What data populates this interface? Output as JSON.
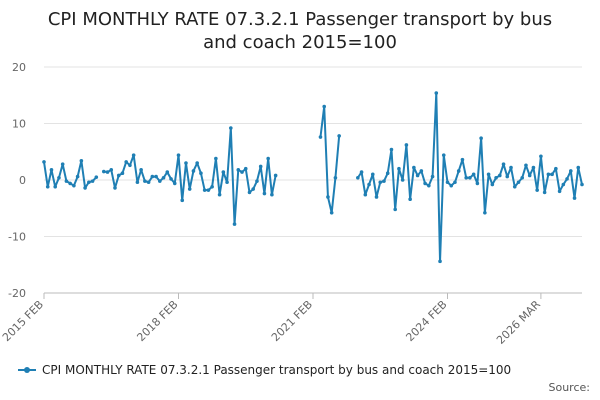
{
  "chart_data": {
    "type": "line",
    "title_lines": [
      "CPI MONTHLY RATE 07.3.2.1 Passenger transport by bus",
      "and coach 2015=100"
    ],
    "xlabel": "",
    "ylabel": "",
    "ylim": [
      -20,
      20
    ],
    "y_ticks": [
      20,
      10,
      0,
      -10,
      -20
    ],
    "x_ticks": [
      "2015 FEB",
      "2018 FEB",
      "2021 FEB",
      "2024 FEB",
      "2026 MAR"
    ],
    "x_start": "2015 FEB",
    "x_end": "2026 MAR",
    "grid": "horizontal",
    "legend_position": "bottom",
    "series": [
      {
        "name": "CPI MONTHLY RATE 07.3.2.1 Passenger transport by bus and coach 2015=100",
        "color": "#1f7fb4",
        "values": [
          3.2,
          -1.2,
          1.8,
          -1.2,
          0.4,
          2.8,
          -0.2,
          -0.6,
          -1.0,
          0.6,
          3.4,
          -1.4,
          -0.4,
          -0.2,
          0.5,
          null,
          1.5,
          1.4,
          1.8,
          -1.4,
          0.8,
          1.2,
          3.2,
          2.6,
          4.4,
          -0.4,
          1.8,
          -0.2,
          -0.4,
          0.6,
          0.6,
          -0.2,
          0.4,
          1.4,
          0.2,
          -0.6,
          4.4,
          -3.6,
          3.0,
          -1.6,
          1.6,
          3.0,
          1.2,
          -1.8,
          -1.8,
          -1.2,
          3.8,
          -2.6,
          1.4,
          -0.4,
          9.2,
          -7.8,
          1.8,
          1.4,
          2.0,
          -2.2,
          -1.6,
          -0.2,
          2.4,
          -2.4,
          3.8,
          -2.6,
          0.8,
          null,
          null,
          null,
          null,
          null,
          null,
          null,
          null,
          null,
          null,
          null,
          7.6,
          13.0,
          -3.0,
          -5.8,
          0.4,
          7.8,
          null,
          null,
          null,
          null,
          0.4,
          1.4,
          -2.6,
          -0.8,
          1.0,
          -3.0,
          -0.4,
          -0.2,
          1.2,
          5.4,
          -5.2,
          2.0,
          0.0,
          6.2,
          -3.4,
          2.2,
          0.8,
          1.6,
          -0.6,
          -1.0,
          0.6,
          15.4,
          -14.4,
          4.4,
          -0.4,
          -1.0,
          -0.4,
          1.6,
          3.6,
          0.4,
          0.4,
          1.0,
          -0.6,
          7.4,
          -5.8,
          1.0,
          -0.8,
          0.4,
          0.8,
          2.8,
          0.6,
          2.2,
          -1.2,
          -0.4,
          0.4,
          2.6,
          0.8,
          2.2,
          -1.8,
          4.2,
          -2.2,
          1.0,
          1.0,
          2.0,
          -2.0,
          -0.8,
          0.2,
          1.6,
          -3.2,
          2.2,
          -0.8
        ]
      }
    ]
  },
  "source_label": "Source:"
}
